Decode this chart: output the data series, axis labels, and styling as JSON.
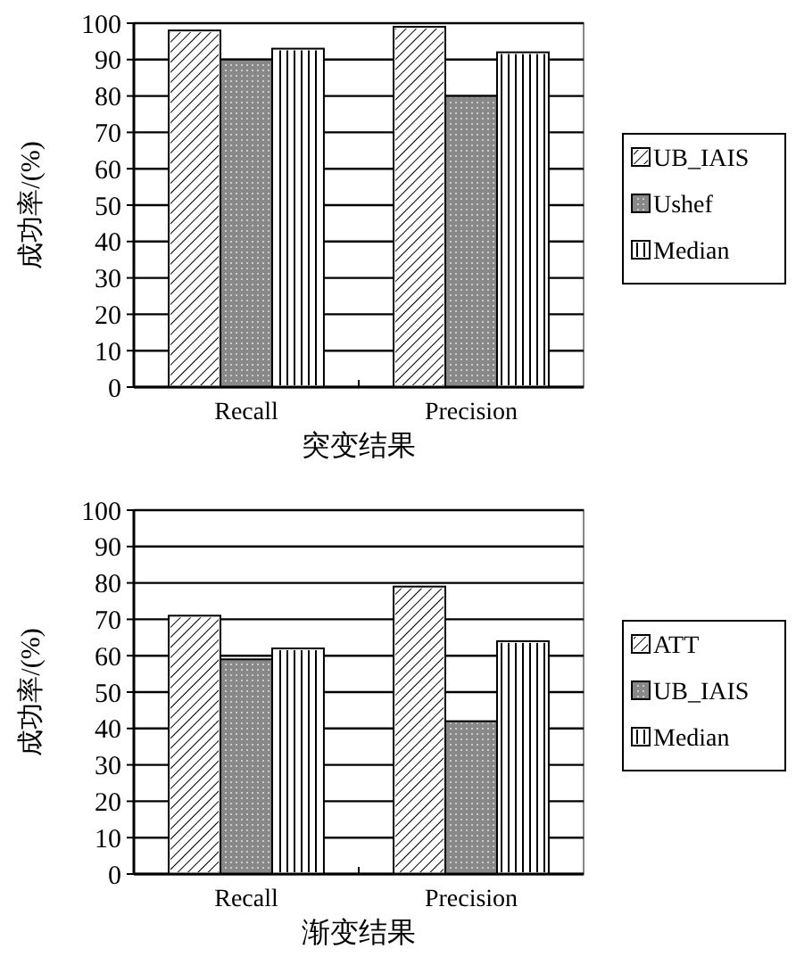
{
  "chart_data": [
    {
      "type": "bar",
      "xlabel": "突变结果",
      "ylabel": "成功率/(%)",
      "categories": [
        "Recall",
        "Precision"
      ],
      "ylim": [
        0,
        100
      ],
      "yticks": [
        0,
        10,
        20,
        30,
        40,
        50,
        60,
        70,
        80,
        90,
        100
      ],
      "grid": "y",
      "legend": "right",
      "series": [
        {
          "name": "UB_IAIS",
          "color": "#ffffff",
          "values": [
            98,
            99
          ]
        },
        {
          "name": "Ushef",
          "color": "#888888",
          "values": [
            90,
            80
          ]
        },
        {
          "name": "Median",
          "color": "#ffffff",
          "values": [
            93,
            92
          ]
        }
      ]
    },
    {
      "type": "bar",
      "xlabel": "渐变结果",
      "ylabel": "成功率/(%)",
      "categories": [
        "Recall",
        "Precision"
      ],
      "ylim": [
        0,
        100
      ],
      "yticks": [
        0,
        10,
        20,
        30,
        40,
        50,
        60,
        70,
        80,
        90,
        100
      ],
      "grid": "y",
      "legend": "right",
      "series": [
        {
          "name": "ATT",
          "color": "#ffffff",
          "values": [
            71,
            79
          ]
        },
        {
          "name": "UB_IAIS",
          "color": "#888888",
          "values": [
            59,
            42
          ]
        },
        {
          "name": "Median",
          "color": "#ffffff",
          "values": [
            62,
            64
          ]
        }
      ]
    }
  ]
}
